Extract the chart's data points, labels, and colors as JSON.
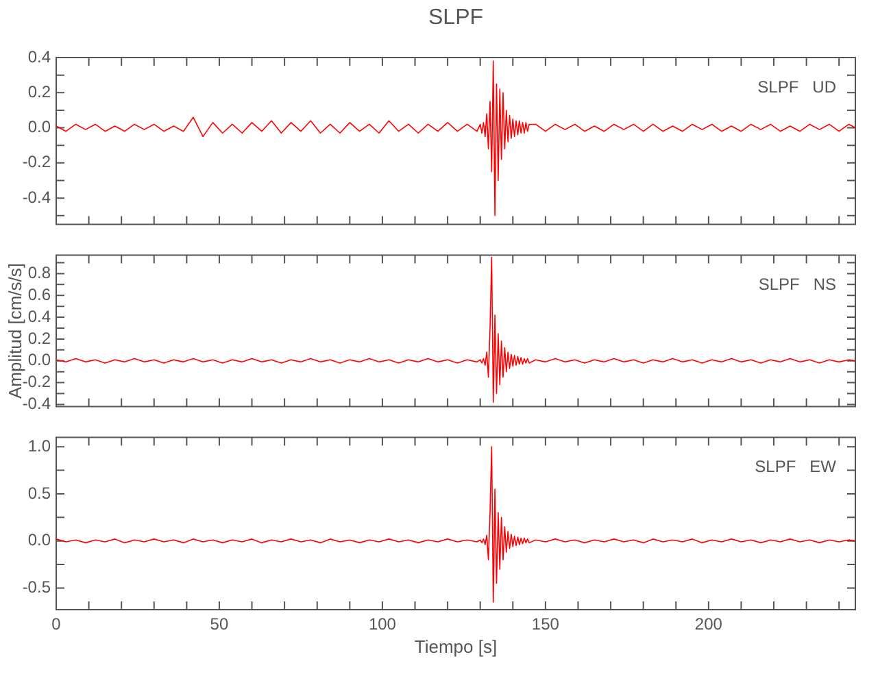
{
  "chart_data": [
    {
      "type": "line",
      "title": "SLPF",
      "annotations": [
        "SLPF   UD"
      ],
      "tick_labels": "y",
      "x": [
        0,
        3,
        6,
        9,
        12,
        15,
        18,
        21,
        24,
        27,
        30,
        33,
        36,
        39,
        42,
        45,
        48,
        51,
        54,
        57,
        60,
        63,
        66,
        69,
        72,
        75,
        78,
        81,
        84,
        87,
        90,
        93,
        96,
        99,
        102,
        105,
        108,
        111,
        114,
        117,
        120,
        123,
        126,
        129,
        130,
        130.5,
        131,
        131.5,
        132,
        132.5,
        133,
        133.5,
        134,
        134.5,
        135,
        135.5,
        136,
        136.5,
        137,
        137.5,
        138,
        138.5,
        139,
        139.5,
        140,
        140.5,
        141,
        141.5,
        142,
        142.5,
        143,
        143.5,
        144,
        144.5,
        145,
        147,
        150,
        153,
        156,
        159,
        162,
        165,
        168,
        171,
        174,
        177,
        180,
        183,
        186,
        189,
        192,
        195,
        198,
        201,
        204,
        207,
        210,
        213,
        216,
        219,
        222,
        225,
        228,
        231,
        234,
        237,
        240,
        243,
        245
      ],
      "series": [
        {
          "color": "#ff0000",
          "values": [
            0.01,
            -0.02,
            0.02,
            -0.01,
            0.02,
            -0.02,
            0.01,
            -0.02,
            0.02,
            -0.01,
            0.02,
            -0.02,
            0.01,
            -0.02,
            0.06,
            -0.05,
            0.03,
            -0.03,
            0.02,
            -0.03,
            0.03,
            -0.02,
            0.04,
            -0.03,
            0.03,
            -0.02,
            0.04,
            -0.03,
            0.02,
            -0.03,
            0.03,
            -0.02,
            0.02,
            -0.03,
            0.04,
            -0.02,
            0.02,
            -0.03,
            0.02,
            -0.02,
            0.03,
            -0.02,
            0.02,
            -0.02,
            0.02,
            -0.03,
            0.03,
            -0.05,
            0.08,
            -0.12,
            0.15,
            -0.25,
            0.38,
            -0.5,
            0.25,
            -0.3,
            0.22,
            -0.18,
            0.2,
            -0.12,
            0.1,
            -0.08,
            0.07,
            -0.06,
            0.05,
            -0.05,
            0.04,
            -0.04,
            0.04,
            -0.03,
            0.03,
            -0.03,
            0.03,
            -0.02,
            0.02,
            0.02,
            -0.02,
            0.02,
            -0.01,
            0.02,
            -0.02,
            0.01,
            -0.02,
            0.02,
            -0.01,
            0.02,
            -0.02,
            0.02,
            -0.02,
            0.01,
            -0.02,
            0.02,
            -0.01,
            0.02,
            -0.02,
            0.01,
            -0.02,
            0.02,
            -0.01,
            0.02,
            -0.02,
            0.01,
            -0.02,
            0.02,
            -0.01,
            0.02,
            -0.02,
            0.02,
            0.0
          ]
        }
      ],
      "xlim": [
        0,
        245
      ],
      "xticks": [
        0,
        {
          "value": 10,
          "label": null
        },
        {
          "value": 20,
          "label": null
        },
        {
          "value": 30,
          "label": null
        },
        {
          "value": 40,
          "label": null
        },
        50,
        {
          "value": 60,
          "label": null
        },
        {
          "value": 70,
          "label": null
        },
        {
          "value": 80,
          "label": null
        },
        {
          "value": 90,
          "label": null
        },
        100,
        {
          "value": 110,
          "label": null
        },
        {
          "value": 120,
          "label": null
        },
        {
          "value": 130,
          "label": null
        },
        {
          "value": 140,
          "label": null
        },
        150,
        {
          "value": 160,
          "label": null
        },
        {
          "value": 170,
          "label": null
        },
        {
          "value": 180,
          "label": null
        },
        {
          "value": 190,
          "label": null
        },
        200,
        {
          "value": 210,
          "label": null
        },
        {
          "value": 220,
          "label": null
        },
        {
          "value": 230,
          "label": null
        },
        {
          "value": 240,
          "label": null
        }
      ],
      "ylim": [
        -0.55,
        0.4
      ],
      "yticks": [
        {
          "value": -0.5,
          "label": null
        },
        -0.4,
        {
          "value": -0.3,
          "label": null
        },
        -0.2,
        {
          "value": -0.1,
          "label": null
        },
        {
          "value": 0,
          "label": "0.0"
        },
        {
          "value": 0.1,
          "label": null
        },
        0.2,
        {
          "value": 0.3,
          "label": null
        },
        0.4
      ]
    },
    {
      "type": "line",
      "ylabel": "Amplitud [cm/s/s]",
      "annotations": [
        "SLPF   NS"
      ],
      "tick_labels": "y",
      "x": [
        0,
        3,
        6,
        9,
        12,
        15,
        18,
        21,
        24,
        27,
        30,
        33,
        36,
        39,
        42,
        45,
        48,
        51,
        54,
        57,
        60,
        63,
        66,
        69,
        72,
        75,
        78,
        81,
        84,
        87,
        90,
        93,
        96,
        99,
        102,
        105,
        108,
        111,
        114,
        117,
        120,
        123,
        126,
        129,
        130,
        130.5,
        131,
        131.5,
        132,
        132.5,
        133,
        133.5,
        134,
        134.5,
        135,
        135.5,
        136,
        136.5,
        137,
        137.5,
        138,
        138.5,
        139,
        139.5,
        140,
        140.5,
        141,
        141.5,
        142,
        142.5,
        143,
        143.5,
        144,
        144.5,
        145,
        147,
        150,
        153,
        156,
        159,
        162,
        165,
        168,
        171,
        174,
        177,
        180,
        183,
        186,
        189,
        192,
        195,
        198,
        201,
        204,
        207,
        210,
        213,
        216,
        219,
        222,
        225,
        228,
        231,
        234,
        237,
        240,
        243,
        245
      ],
      "series": [
        {
          "color": "#ff0000",
          "values": [
            0.01,
            -0.01,
            0.02,
            -0.01,
            0.01,
            -0.02,
            0.01,
            -0.01,
            0.02,
            -0.01,
            0.01,
            -0.02,
            0.01,
            -0.01,
            0.02,
            -0.01,
            0.01,
            -0.02,
            0.01,
            -0.01,
            0.02,
            -0.01,
            0.01,
            -0.02,
            0.01,
            -0.01,
            0.02,
            -0.01,
            0.01,
            -0.02,
            0.01,
            -0.01,
            0.02,
            -0.01,
            0.01,
            -0.02,
            0.01,
            -0.01,
            0.02,
            -0.01,
            0.01,
            -0.02,
            0.01,
            -0.01,
            0.01,
            -0.02,
            0.02,
            -0.04,
            0.08,
            -0.15,
            0.3,
            0.95,
            -0.38,
            0.42,
            -0.3,
            0.25,
            -0.22,
            0.18,
            -0.15,
            0.12,
            -0.1,
            0.08,
            -0.07,
            0.06,
            -0.05,
            0.05,
            -0.04,
            0.04,
            -0.03,
            0.03,
            -0.03,
            0.02,
            -0.02,
            0.02,
            -0.02,
            0.01,
            -0.01,
            0.02,
            -0.01,
            0.01,
            -0.02,
            0.01,
            -0.01,
            0.02,
            -0.01,
            0.01,
            -0.02,
            0.01,
            -0.01,
            0.02,
            -0.01,
            0.01,
            -0.02,
            0.01,
            -0.01,
            0.02,
            -0.01,
            0.01,
            -0.02,
            0.01,
            -0.01,
            0.02,
            -0.01,
            0.01,
            -0.02,
            0.01,
            -0.01,
            0.01,
            0.0
          ]
        }
      ],
      "xlim": [
        0,
        245
      ],
      "xticks": [
        0,
        {
          "value": 10,
          "label": null
        },
        {
          "value": 20,
          "label": null
        },
        {
          "value": 30,
          "label": null
        },
        {
          "value": 40,
          "label": null
        },
        50,
        {
          "value": 60,
          "label": null
        },
        {
          "value": 70,
          "label": null
        },
        {
          "value": 80,
          "label": null
        },
        {
          "value": 90,
          "label": null
        },
        100,
        {
          "value": 110,
          "label": null
        },
        {
          "value": 120,
          "label": null
        },
        {
          "value": 130,
          "label": null
        },
        {
          "value": 140,
          "label": null
        },
        150,
        {
          "value": 160,
          "label": null
        },
        {
          "value": 170,
          "label": null
        },
        {
          "value": 180,
          "label": null
        },
        {
          "value": 190,
          "label": null
        },
        200,
        {
          "value": 210,
          "label": null
        },
        {
          "value": 220,
          "label": null
        },
        {
          "value": 230,
          "label": null
        },
        {
          "value": 240,
          "label": null
        }
      ],
      "ylim": [
        -0.42,
        0.97
      ],
      "yticks": [
        -0.4,
        {
          "value": -0.3,
          "label": null
        },
        -0.2,
        {
          "value": -0.1,
          "label": null
        },
        {
          "value": 0,
          "label": "0.0"
        },
        {
          "value": 0.1,
          "label": null
        },
        0.2,
        {
          "value": 0.3,
          "label": null
        },
        0.4,
        {
          "value": 0.5,
          "label": null
        },
        0.6,
        {
          "value": 0.7,
          "label": null
        },
        0.8,
        {
          "value": 0.9,
          "label": null
        }
      ]
    },
    {
      "type": "line",
      "xlabel": "Tiempo [s]",
      "annotations": [
        "SLPF   EW"
      ],
      "x": [
        0,
        3,
        6,
        9,
        12,
        15,
        18,
        21,
        24,
        27,
        30,
        33,
        36,
        39,
        42,
        45,
        48,
        51,
        54,
        57,
        60,
        63,
        66,
        69,
        72,
        75,
        78,
        81,
        84,
        87,
        90,
        93,
        96,
        99,
        102,
        105,
        108,
        111,
        114,
        117,
        120,
        123,
        126,
        129,
        130,
        130.5,
        131,
        131.5,
        132,
        132.5,
        133,
        133.5,
        134,
        134.5,
        135,
        135.5,
        136,
        136.5,
        137,
        137.5,
        138,
        138.5,
        139,
        139.5,
        140,
        140.5,
        141,
        141.5,
        142,
        142.5,
        143,
        143.5,
        144,
        144.5,
        145,
        147,
        150,
        153,
        156,
        159,
        162,
        165,
        168,
        171,
        174,
        177,
        180,
        183,
        186,
        189,
        192,
        195,
        198,
        201,
        204,
        207,
        210,
        213,
        216,
        219,
        222,
        225,
        228,
        231,
        234,
        237,
        240,
        243,
        245
      ],
      "series": [
        {
          "color": "#ff0000",
          "values": [
            0.02,
            -0.01,
            0.01,
            -0.02,
            0.01,
            -0.01,
            0.02,
            -0.02,
            0.01,
            -0.01,
            0.02,
            -0.01,
            0.01,
            -0.02,
            0.02,
            -0.01,
            0.01,
            -0.02,
            0.01,
            -0.01,
            0.02,
            -0.02,
            0.01,
            -0.01,
            0.02,
            -0.01,
            0.01,
            -0.02,
            0.02,
            -0.01,
            0.01,
            -0.02,
            0.01,
            -0.01,
            0.02,
            -0.01,
            0.01,
            -0.02,
            0.01,
            -0.01,
            0.02,
            -0.01,
            0.01,
            -0.01,
            0.01,
            -0.02,
            0.02,
            -0.04,
            0.06,
            -0.2,
            0.3,
            1.0,
            -0.65,
            0.55,
            -0.45,
            0.3,
            -0.3,
            0.25,
            -0.2,
            0.15,
            -0.12,
            0.1,
            -0.08,
            0.07,
            -0.06,
            0.05,
            -0.05,
            0.04,
            -0.04,
            0.03,
            -0.03,
            0.03,
            -0.02,
            0.02,
            -0.02,
            0.01,
            -0.01,
            0.02,
            -0.01,
            0.01,
            -0.02,
            0.01,
            -0.01,
            0.02,
            -0.01,
            0.01,
            -0.02,
            0.02,
            -0.01,
            0.01,
            -0.01,
            0.02,
            -0.02,
            0.01,
            -0.01,
            0.02,
            -0.01,
            0.01,
            -0.02,
            0.01,
            -0.01,
            0.02,
            -0.01,
            0.01,
            -0.02,
            0.01,
            -0.01,
            0.01,
            0.0
          ]
        }
      ],
      "xlim": [
        0,
        245
      ],
      "xticks": [
        0,
        {
          "value": 10,
          "label": null
        },
        {
          "value": 20,
          "label": null
        },
        {
          "value": 30,
          "label": null
        },
        {
          "value": 40,
          "label": null
        },
        50,
        {
          "value": 60,
          "label": null
        },
        {
          "value": 70,
          "label": null
        },
        {
          "value": 80,
          "label": null
        },
        {
          "value": 90,
          "label": null
        },
        100,
        {
          "value": 110,
          "label": null
        },
        {
          "value": 120,
          "label": null
        },
        {
          "value": 130,
          "label": null
        },
        {
          "value": 140,
          "label": null
        },
        150,
        {
          "value": 160,
          "label": null
        },
        {
          "value": 170,
          "label": null
        },
        {
          "value": 180,
          "label": null
        },
        {
          "value": 190,
          "label": null
        },
        200,
        {
          "value": 210,
          "label": null
        },
        {
          "value": 220,
          "label": null
        },
        {
          "value": 230,
          "label": null
        },
        {
          "value": 240,
          "label": null
        }
      ],
      "ylim": [
        -0.73,
        1.1
      ],
      "yticks": [
        {
          "value": -0.5,
          "label": "-0.5"
        },
        {
          "value": -0.25,
          "label": null
        },
        {
          "value": 0,
          "label": "0.0"
        },
        {
          "value": 0.25,
          "label": null
        },
        0.5,
        {
          "value": 0.75,
          "label": null
        },
        {
          "value": 1,
          "label": "1.0"
        }
      ]
    }
  ]
}
